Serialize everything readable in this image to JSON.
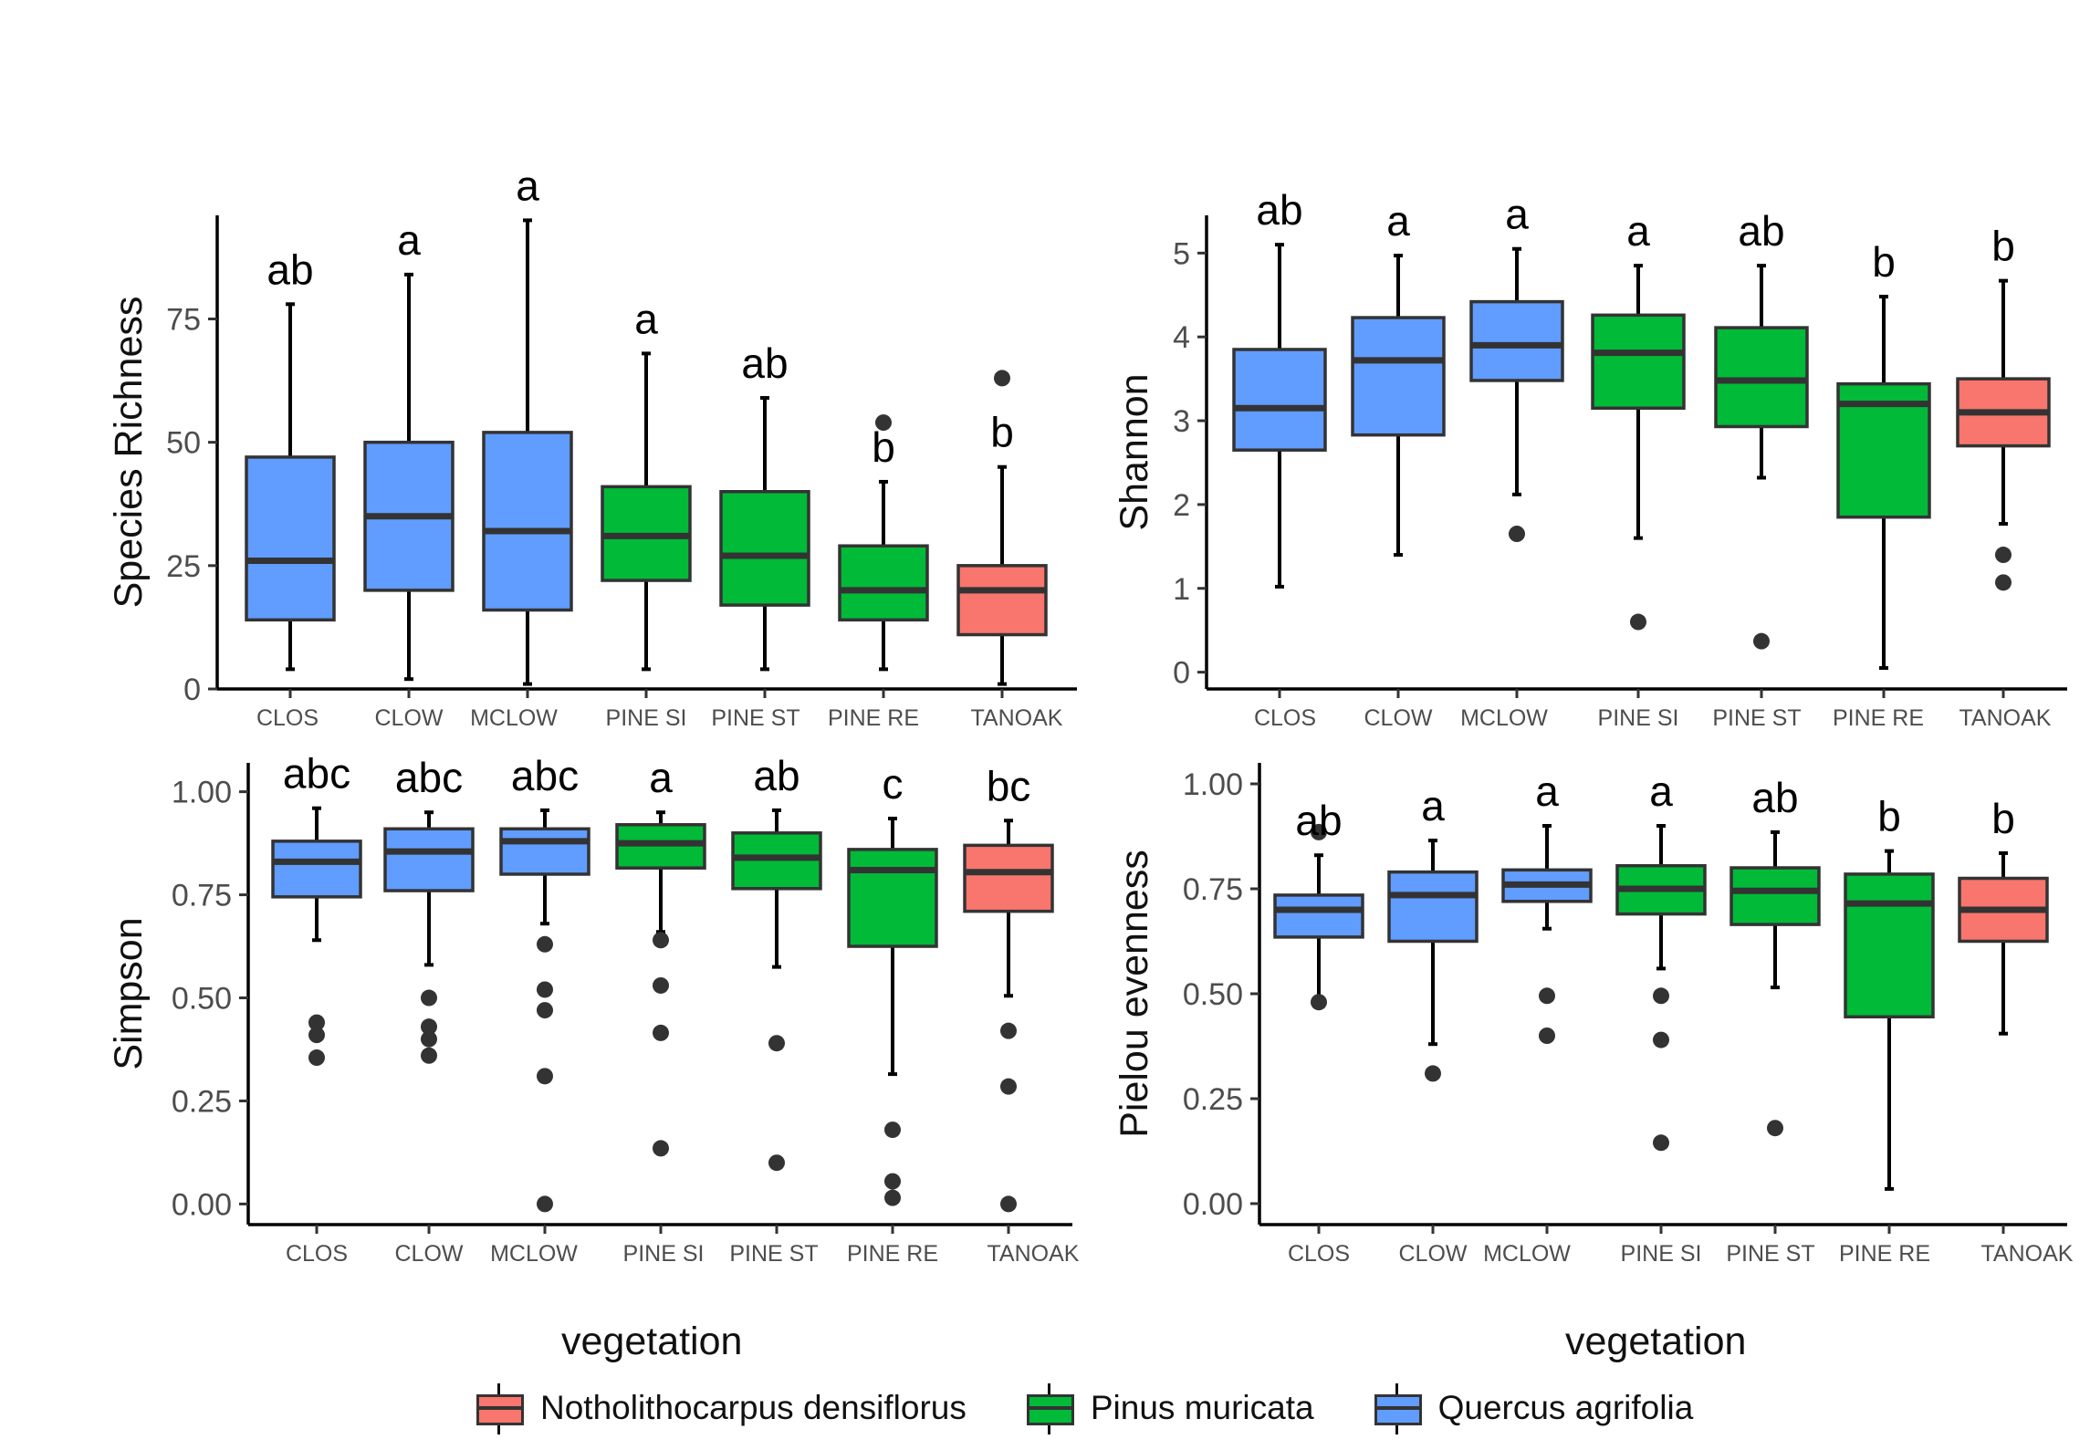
{
  "legend": {
    "items": [
      {
        "label": "Notholithocarpus densiflorus",
        "color": "#F8766D"
      },
      {
        "label": "Pinus muricata",
        "color": "#00BA38"
      },
      {
        "label": "Quercus agrifolia",
        "color": "#619CFF"
      }
    ]
  },
  "xaxis_titles": {
    "left": "vegetation",
    "right": "vegetation"
  },
  "chart_data": [
    {
      "type": "boxplot",
      "panel": "top-left",
      "ylabel": "Species Richness",
      "xlabel": "",
      "ylim": [
        0,
        96
      ],
      "yticks": [
        0,
        25,
        50,
        75
      ],
      "yticklabels": [
        "0",
        "25",
        "50",
        "75"
      ],
      "categories": [
        "CLOS",
        "CLOW",
        "MCLOW",
        "PINE SI",
        "PINE ST",
        "PINE RE",
        "TANOAK"
      ],
      "groups": [
        "Quercus agrifolia",
        "Quercus agrifolia",
        "Quercus agrifolia",
        "Pinus muricata",
        "Pinus muricata",
        "Pinus muricata",
        "Notholithocarpus densiflorus"
      ],
      "boxes": [
        {
          "min": 4,
          "q1": 14,
          "median": 26,
          "q3": 47,
          "max": 78,
          "outliers": [],
          "letter": "ab"
        },
        {
          "min": 2,
          "q1": 20,
          "median": 35,
          "q3": 50,
          "max": 84,
          "outliers": [],
          "letter": "a"
        },
        {
          "min": 1,
          "q1": 16,
          "median": 32,
          "q3": 52,
          "max": 95,
          "outliers": [],
          "letter": "a"
        },
        {
          "min": 4,
          "q1": 22,
          "median": 31,
          "q3": 41,
          "max": 68,
          "outliers": [],
          "letter": "a"
        },
        {
          "min": 4,
          "q1": 17,
          "median": 27,
          "q3": 40,
          "max": 59,
          "outliers": [],
          "letter": "ab"
        },
        {
          "min": 4,
          "q1": 14,
          "median": 20,
          "q3": 29,
          "max": 42,
          "outliers": [
            54
          ],
          "letter": "b"
        },
        {
          "min": 1,
          "q1": 11,
          "median": 20,
          "q3": 25,
          "max": 45,
          "outliers": [
            63
          ],
          "letter": "b"
        }
      ]
    },
    {
      "type": "boxplot",
      "panel": "top-right",
      "ylabel": "Shannon",
      "xlabel": "",
      "ylim": [
        -0.2,
        5.45
      ],
      "yticks": [
        0,
        1,
        2,
        3,
        4,
        5
      ],
      "yticklabels": [
        "0",
        "1",
        "2",
        "3",
        "4",
        "5"
      ],
      "categories": [
        "CLOS",
        "CLOW",
        "MCLOW",
        "PINE SI",
        "PINE ST",
        "PINE RE",
        "TANOAK"
      ],
      "groups": [
        "Quercus agrifolia",
        "Quercus agrifolia",
        "Quercus agrifolia",
        "Pinus muricata",
        "Pinus muricata",
        "Pinus muricata",
        "Notholithocarpus densiflorus"
      ],
      "boxes": [
        {
          "min": 1.02,
          "q1": 2.65,
          "median": 3.15,
          "q3": 3.85,
          "max": 5.1,
          "outliers": [],
          "letter": "ab"
        },
        {
          "min": 1.4,
          "q1": 2.83,
          "median": 3.72,
          "q3": 4.23,
          "max": 4.97,
          "outliers": [],
          "letter": "a"
        },
        {
          "min": 2.12,
          "q1": 3.48,
          "median": 3.9,
          "q3": 4.42,
          "max": 5.05,
          "outliers": [
            1.65
          ],
          "letter": "a"
        },
        {
          "min": 1.6,
          "q1": 3.15,
          "median": 3.81,
          "q3": 4.26,
          "max": 4.85,
          "outliers": [
            0.6
          ],
          "letter": "a"
        },
        {
          "min": 2.32,
          "q1": 2.93,
          "median": 3.48,
          "q3": 4.11,
          "max": 4.85,
          "outliers": [
            0.37
          ],
          "letter": "ab"
        },
        {
          "min": 0.05,
          "q1": 1.85,
          "median": 3.2,
          "q3": 3.44,
          "max": 4.48,
          "outliers": [],
          "letter": "b"
        },
        {
          "min": 1.77,
          "q1": 2.7,
          "median": 3.1,
          "q3": 3.5,
          "max": 4.67,
          "outliers": [
            1.4,
            1.07
          ],
          "letter": "b"
        }
      ]
    },
    {
      "type": "boxplot",
      "panel": "bottom-left",
      "ylabel": "Simpson",
      "xlabel": "",
      "ylim": [
        -0.05,
        1.07
      ],
      "yticks": [
        0,
        0.25,
        0.5,
        0.75,
        1
      ],
      "yticklabels": [
        "0.00",
        "0.25",
        "0.50",
        "0.75",
        "1.00"
      ],
      "categories": [
        "CLOS",
        "CLOW",
        "MCLOW",
        "PINE SI",
        "PINE ST",
        "PINE RE",
        "TANOAK"
      ],
      "groups": [
        "Quercus agrifolia",
        "Quercus agrifolia",
        "Quercus agrifolia",
        "Pinus muricata",
        "Pinus muricata",
        "Pinus muricata",
        "Notholithocarpus densiflorus"
      ],
      "boxes": [
        {
          "min": 0.64,
          "q1": 0.745,
          "median": 0.83,
          "q3": 0.88,
          "max": 0.96,
          "outliers": [
            0.44,
            0.41,
            0.355
          ],
          "letter": "abc"
        },
        {
          "min": 0.58,
          "q1": 0.76,
          "median": 0.855,
          "q3": 0.91,
          "max": 0.95,
          "outliers": [
            0.5,
            0.43,
            0.4,
            0.36
          ],
          "letter": "abc"
        },
        {
          "min": 0.68,
          "q1": 0.8,
          "median": 0.88,
          "q3": 0.91,
          "max": 0.955,
          "outliers": [
            0.63,
            0.52,
            0.47,
            0.31,
            0.0
          ],
          "letter": "abc"
        },
        {
          "min": 0.66,
          "q1": 0.815,
          "median": 0.875,
          "q3": 0.92,
          "max": 0.95,
          "outliers": [
            0.64,
            0.53,
            0.415,
            0.135
          ],
          "letter": "a"
        },
        {
          "min": 0.575,
          "q1": 0.765,
          "median": 0.84,
          "q3": 0.9,
          "max": 0.955,
          "outliers": [
            0.39,
            0.1
          ],
          "letter": "ab"
        },
        {
          "min": 0.315,
          "q1": 0.625,
          "median": 0.81,
          "q3": 0.86,
          "max": 0.935,
          "outliers": [
            0.18,
            0.055,
            0.015
          ],
          "letter": "c"
        },
        {
          "min": 0.505,
          "q1": 0.71,
          "median": 0.805,
          "q3": 0.87,
          "max": 0.93,
          "outliers": [
            0.42,
            0.285,
            0.0
          ],
          "letter": "bc"
        }
      ]
    },
    {
      "type": "boxplot",
      "panel": "bottom-right",
      "ylabel": "Pielou evenness",
      "xlabel": "",
      "ylim": [
        -0.05,
        1.05
      ],
      "yticks": [
        0,
        0.25,
        0.5,
        0.75,
        1
      ],
      "yticklabels": [
        "0.00",
        "0.25",
        "0.50",
        "0.75",
        "1.00"
      ],
      "categories": [
        "CLOS",
        "CLOW",
        "MCLOW",
        "PINE SI",
        "PINE ST",
        "PINE RE",
        "TANOAK"
      ],
      "groups": [
        "Quercus agrifolia",
        "Quercus agrifolia",
        "Quercus agrifolia",
        "Pinus muricata",
        "Pinus muricata",
        "Pinus muricata",
        "Notholithocarpus densiflorus"
      ],
      "boxes": [
        {
          "min": 0.49,
          "q1": 0.635,
          "median": 0.7,
          "q3": 0.735,
          "max": 0.83,
          "outliers": [
            0.885,
            0.48
          ],
          "letter": "ab"
        },
        {
          "min": 0.38,
          "q1": 0.625,
          "median": 0.735,
          "q3": 0.79,
          "max": 0.865,
          "outliers": [
            0.31
          ],
          "letter": "a"
        },
        {
          "min": 0.655,
          "q1": 0.72,
          "median": 0.76,
          "q3": 0.795,
          "max": 0.9,
          "outliers": [
            0.495,
            0.4
          ],
          "letter": "a"
        },
        {
          "min": 0.56,
          "q1": 0.69,
          "median": 0.75,
          "q3": 0.805,
          "max": 0.9,
          "outliers": [
            0.495,
            0.39,
            0.145
          ],
          "letter": "a"
        },
        {
          "min": 0.515,
          "q1": 0.665,
          "median": 0.745,
          "q3": 0.8,
          "max": 0.885,
          "outliers": [
            0.18
          ],
          "letter": "ab"
        },
        {
          "min": 0.035,
          "q1": 0.445,
          "median": 0.715,
          "q3": 0.785,
          "max": 0.84,
          "outliers": [],
          "letter": "b"
        },
        {
          "min": 0.405,
          "q1": 0.625,
          "median": 0.7,
          "q3": 0.775,
          "max": 0.835,
          "outliers": [],
          "letter": "b"
        }
      ]
    }
  ]
}
